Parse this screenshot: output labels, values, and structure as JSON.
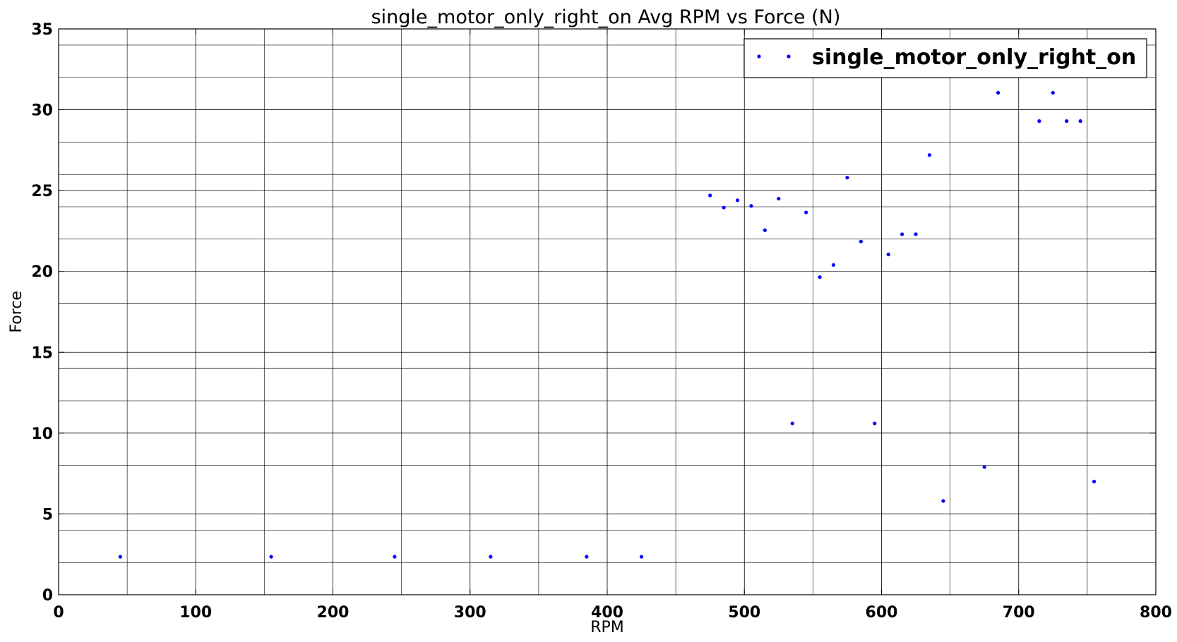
{
  "chart_data": {
    "type": "scatter",
    "title": "single_motor_only_right_on Avg RPM vs Force (N)",
    "xlabel": "RPM",
    "ylabel": "Force",
    "xlim": [
      0,
      800
    ],
    "ylim": [
      0,
      35
    ],
    "xticks": [
      "0",
      "100",
      "200",
      "300",
      "400",
      "500",
      "600",
      "700",
      "800"
    ],
    "yticks": [
      "0",
      "5",
      "10",
      "15",
      "20",
      "25",
      "30",
      "35"
    ],
    "grid": true,
    "legend_position": "top-right",
    "point_color": "#0000ff",
    "series": [
      {
        "name": "single_motor_only_right_on",
        "points": [
          [
            45,
            2.35
          ],
          [
            155,
            2.35
          ],
          [
            245,
            2.35
          ],
          [
            315,
            2.35
          ],
          [
            385,
            2.35
          ],
          [
            425,
            2.35
          ],
          [
            475,
            24.7
          ],
          [
            485,
            23.95
          ],
          [
            495,
            24.4
          ],
          [
            505,
            24.05
          ],
          [
            515,
            22.55
          ],
          [
            525,
            24.5
          ],
          [
            535,
            10.6
          ],
          [
            545,
            23.65
          ],
          [
            555,
            19.65
          ],
          [
            565,
            20.4
          ],
          [
            575,
            25.8
          ],
          [
            585,
            21.85
          ],
          [
            595,
            10.6
          ],
          [
            605,
            21.05
          ],
          [
            615,
            22.3
          ],
          [
            625,
            22.3
          ],
          [
            635,
            27.2
          ],
          [
            645,
            5.8
          ],
          [
            675,
            7.9
          ],
          [
            685,
            31.05
          ],
          [
            715,
            29.3
          ],
          [
            725,
            31.05
          ],
          [
            735,
            29.3
          ],
          [
            745,
            29.3
          ],
          [
            755,
            7.0
          ]
        ]
      }
    ]
  }
}
